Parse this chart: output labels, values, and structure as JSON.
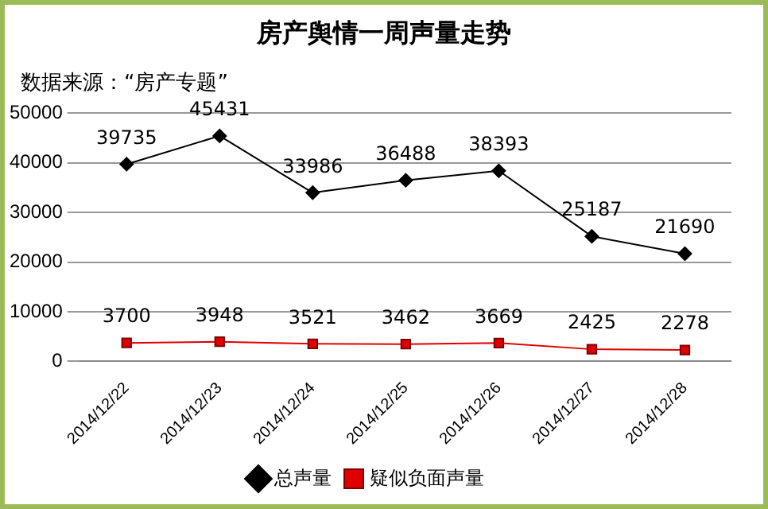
{
  "chart_data": {
    "type": "line",
    "title": "房产舆情一周声量走势",
    "subtitle": "数据来源：“房产专题”",
    "categories": [
      "2014/12/22",
      "2014/12/23",
      "2014/12/24",
      "2014/12/25",
      "2014/12/26",
      "2014/12/27",
      "2014/12/28"
    ],
    "series": [
      {
        "name": "总声量",
        "color": "#000000",
        "marker": "diamond",
        "values": [
          39735,
          45431,
          33986,
          36488,
          38393,
          25187,
          21690
        ]
      },
      {
        "name": "疑似负面声量",
        "color": "#e00000",
        "marker": "square",
        "values": [
          3700,
          3948,
          3521,
          3462,
          3669,
          2425,
          2278
        ]
      }
    ],
    "ylim": [
      0,
      50000
    ],
    "yticks": [
      0,
      10000,
      20000,
      30000,
      40000,
      50000
    ],
    "grid": "y",
    "legend": "bottom",
    "data_labels": true,
    "line_style": "solid"
  }
}
